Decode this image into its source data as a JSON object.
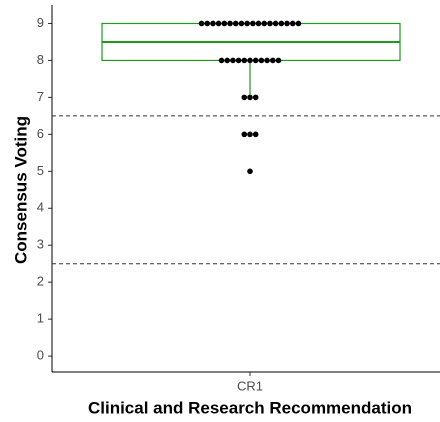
{
  "chart_data": {
    "type": "boxplot-dotplot",
    "categories": [
      "CR1"
    ],
    "x_label": "Clinical and Research Recommendation",
    "y_label": "Consensus Voting",
    "values": [
      9,
      9,
      9,
      9,
      9,
      9,
      9,
      9,
      9,
      9,
      9,
      9,
      9,
      9,
      9,
      9,
      9,
      9,
      8,
      8,
      8,
      8,
      8,
      8,
      8,
      8,
      8,
      8,
      8,
      7,
      7,
      7,
      6,
      6,
      6,
      5
    ],
    "box": {
      "whisker_low": 7,
      "q1": 8,
      "median": 8.5,
      "q3": 9,
      "whisker_high": 9
    },
    "box_color": "#1f9a1f",
    "dot_color": "#000000",
    "reference_lines": [
      2.5,
      6.5
    ],
    "ylim": [
      -0.43,
      9.5
    ],
    "yticks": [
      0,
      1,
      2,
      3,
      4,
      5,
      6,
      7,
      8,
      9
    ]
  }
}
